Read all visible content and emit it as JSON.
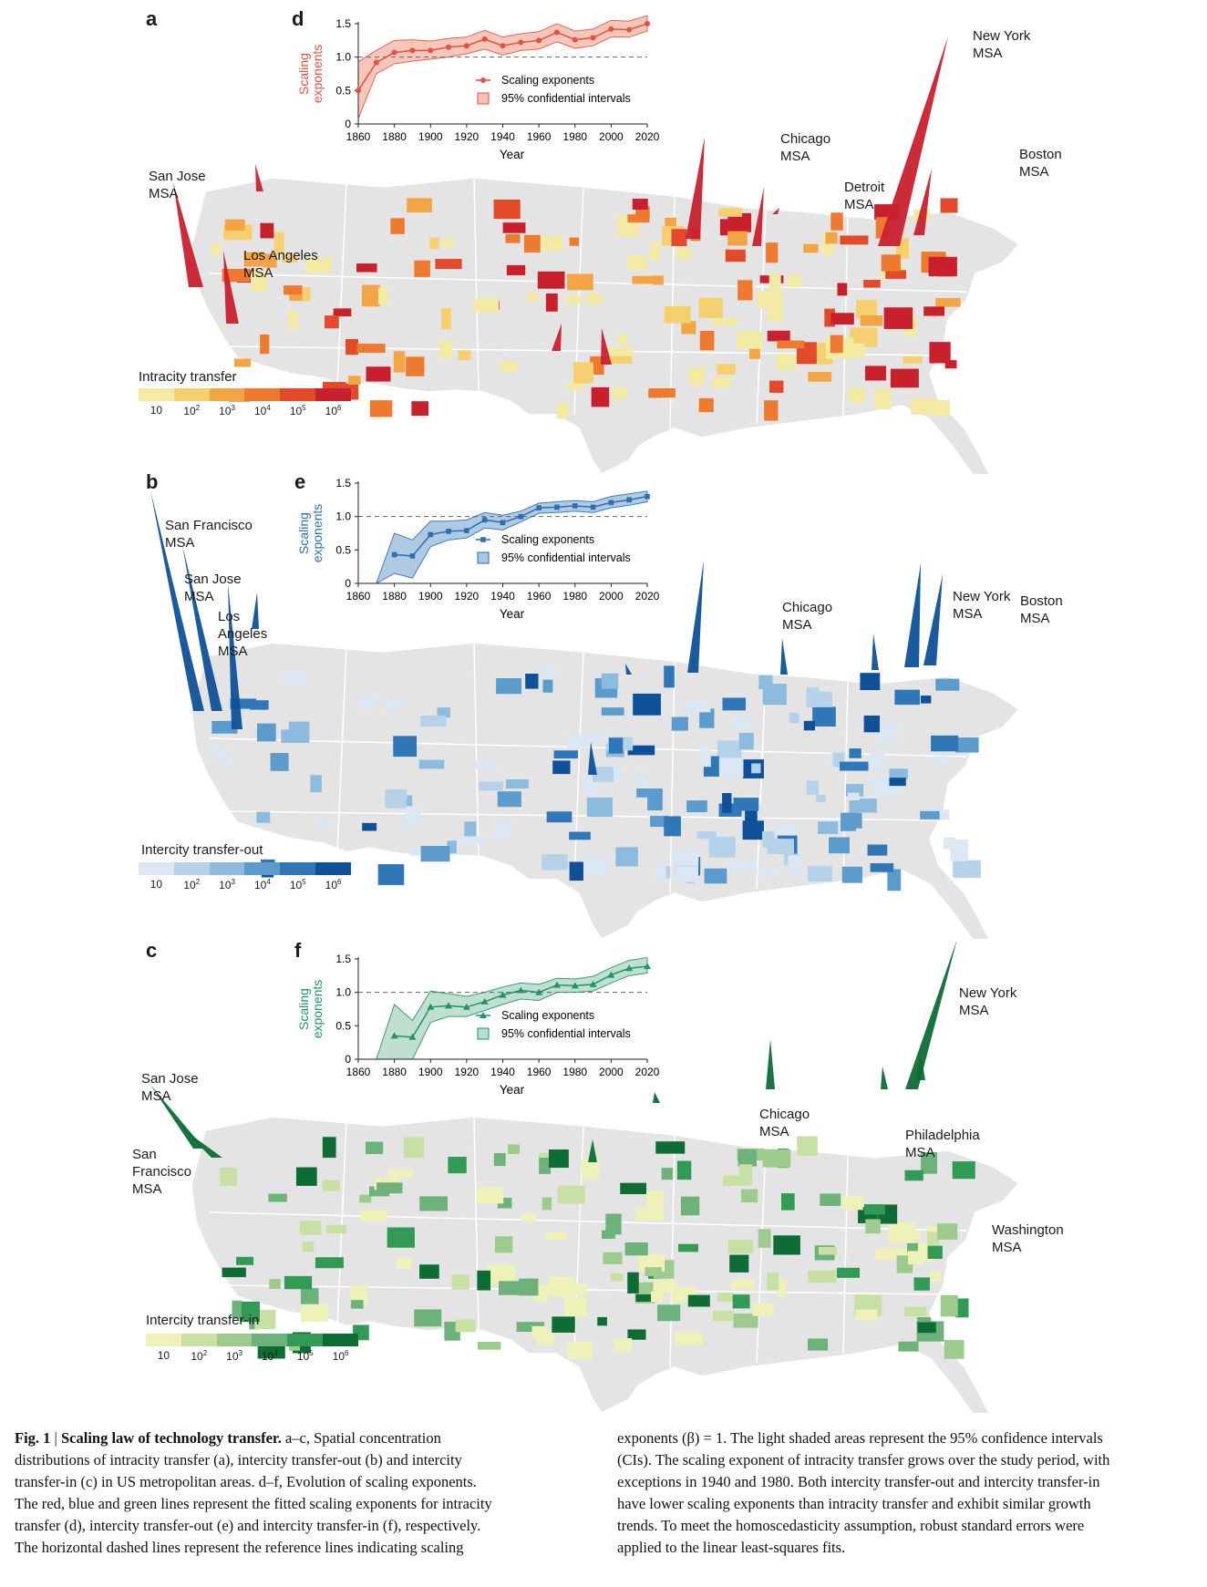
{
  "panels": {
    "a": {
      "letter": "a",
      "legend_title": "Intracity transfer",
      "colors": [
        "#f3eba4",
        "#f6cf6e",
        "#f3a545",
        "#ee7a30",
        "#e24a2a",
        "#c9202e"
      ],
      "cities": [
        "San Jose\nMSA",
        "Los Angeles\nMSA",
        "Chicago\nMSA",
        "Detroit\nMSA",
        "New York\nMSA",
        "Boston\nMSA"
      ]
    },
    "b": {
      "letter": "b",
      "legend_title": "Intercity transfer-out",
      "colors": [
        "#dbe7f3",
        "#b6d2e8",
        "#8cbbdd",
        "#5b9ccc",
        "#2f77b7",
        "#0e5198"
      ],
      "cities": [
        "San Francisco\nMSA",
        "San Jose\nMSA",
        "Los\nAngeles\nMSA",
        "Chicago\nMSA",
        "New York\nMSA",
        "Boston\nMSA"
      ]
    },
    "c": {
      "letter": "c",
      "legend_title": "Intercity transfer-in",
      "colors": [
        "#eef2b8",
        "#c9e0a5",
        "#9dcb8e",
        "#6cb27a",
        "#319a55",
        "#0d6d35"
      ],
      "cities": [
        "San Jose\nMSA",
        "San\nFrancisco\nMSA",
        "Chicago\nMSA",
        "Philadelphia\nMSA",
        "New York\nMSA",
        "Washington\nMSA"
      ]
    }
  },
  "legend_ticks": [
    "10",
    "10",
    "10",
    "10",
    "10",
    "10"
  ],
  "legend_exps": [
    "",
    "2",
    "3",
    "4",
    "5",
    "6"
  ],
  "chart_data": [
    {
      "type": "line",
      "panel": "d",
      "color": "#e5503f",
      "fill": "#f4c2b4",
      "x": [
        1860,
        1870,
        1880,
        1890,
        1900,
        1910,
        1920,
        1930,
        1940,
        1950,
        1960,
        1970,
        1980,
        1990,
        2000,
        2010,
        2020
      ],
      "series": [
        {
          "name": "Scaling exponents",
          "marker": "circle",
          "values": [
            0.5,
            0.92,
            1.07,
            1.1,
            1.1,
            1.15,
            1.17,
            1.27,
            1.17,
            1.22,
            1.25,
            1.37,
            1.26,
            1.29,
            1.42,
            1.41,
            1.5
          ]
        },
        {
          "name": "95% confidential intervals",
          "lower": [
            0.08,
            0.75,
            0.9,
            0.94,
            0.97,
            1.0,
            1.05,
            1.12,
            1.03,
            1.1,
            1.12,
            1.23,
            1.13,
            1.17,
            1.3,
            1.3,
            1.39
          ],
          "upper": [
            0.93,
            1.1,
            1.25,
            1.26,
            1.24,
            1.28,
            1.3,
            1.4,
            1.3,
            1.35,
            1.38,
            1.5,
            1.39,
            1.42,
            1.55,
            1.54,
            1.62
          ]
        }
      ],
      "xlabel": "Year",
      "ylabel": "Scaling\nexponents",
      "ylim": [
        0,
        1.5
      ],
      "xlim": [
        1860,
        2020
      ],
      "xticks": [
        "1860",
        "1880",
        "1900",
        "1920",
        "1940",
        "1960",
        "1980",
        "2000",
        "2020"
      ],
      "yticks": [
        "0",
        "0.5",
        "1.0",
        "1.5"
      ],
      "reference_line": 1.0
    },
    {
      "type": "line",
      "panel": "e",
      "color": "#2a6fb0",
      "fill": "#a9c5e2",
      "x": [
        1880,
        1890,
        1900,
        1910,
        1920,
        1930,
        1940,
        1950,
        1960,
        1970,
        1980,
        1990,
        2000,
        2010,
        2020
      ],
      "series": [
        {
          "name": "Scaling exponents",
          "marker": "square",
          "values": [
            0.43,
            0.41,
            0.73,
            0.78,
            0.79,
            0.95,
            0.91,
            1.0,
            1.13,
            1.14,
            1.16,
            1.14,
            1.21,
            1.25,
            1.3
          ]
        },
        {
          "name": "95% confidential intervals",
          "x_start": 1870,
          "lower": [
            0.0,
            0.15,
            0.08,
            0.55,
            0.65,
            0.68,
            0.83,
            0.8,
            0.92,
            1.05,
            1.06,
            1.08,
            1.06,
            1.13,
            1.17,
            1.22
          ],
          "upper": [
            0.0,
            0.75,
            0.65,
            0.93,
            0.93,
            0.95,
            1.06,
            1.02,
            1.08,
            1.2,
            1.22,
            1.24,
            1.22,
            1.3,
            1.34,
            1.38
          ]
        }
      ],
      "xlabel": "Year",
      "ylabel": "Scaling\nexponents",
      "ylim": [
        0,
        1.5
      ],
      "xlim": [
        1860,
        2020
      ],
      "xticks": [
        "1860",
        "1880",
        "1900",
        "1920",
        "1940",
        "1960",
        "1980",
        "2000",
        "2020"
      ],
      "yticks": [
        "0",
        "0.5",
        "1.0",
        "1.5"
      ],
      "reference_line": 1.0
    },
    {
      "type": "line",
      "panel": "f",
      "color": "#21946a",
      "fill": "#b9dccb",
      "x": [
        1880,
        1890,
        1900,
        1910,
        1920,
        1930,
        1940,
        1950,
        1960,
        1970,
        1980,
        1990,
        2000,
        2010,
        2020
      ],
      "series": [
        {
          "name": "Scaling exponents",
          "marker": "triangle",
          "values": [
            0.35,
            0.33,
            0.78,
            0.8,
            0.78,
            0.86,
            0.96,
            1.03,
            1.0,
            1.11,
            1.1,
            1.12,
            1.26,
            1.36,
            1.39
          ]
        },
        {
          "name": "95% confidential intervals",
          "x_start": 1870,
          "lower": [
            0.0,
            0.0,
            0.0,
            0.55,
            0.64,
            0.64,
            0.73,
            0.82,
            0.9,
            0.88,
            1.0,
            1.0,
            1.02,
            1.14,
            1.25,
            1.29
          ],
          "upper": [
            0.0,
            0.82,
            0.58,
            1.02,
            0.98,
            0.94,
            1.0,
            1.08,
            1.14,
            1.12,
            1.21,
            1.2,
            1.24,
            1.37,
            1.48,
            1.52
          ]
        }
      ],
      "xlabel": "Year",
      "ylabel": "Scaling\nexponents",
      "ylim": [
        0,
        1.5
      ],
      "xlim": [
        1860,
        2020
      ],
      "xticks": [
        "1860",
        "1880",
        "1900",
        "1920",
        "1940",
        "1960",
        "1980",
        "2000",
        "2020"
      ],
      "yticks": [
        "0",
        "0.5",
        "1.0",
        "1.5"
      ],
      "reference_line": 1.0
    }
  ],
  "caption": {
    "fig": "Fig. 1",
    "sep": " | ",
    "title": "Scaling law of technology transfer.",
    "col1": [
      " a–c, Spatial concentration",
      "distributions of intracity transfer (a), intercity transfer-out (b) and intercity",
      "transfer-in (c) in US metropolitan areas. d–f, Evolution of scaling exponents.",
      "The red, blue and green lines represent the fitted scaling exponents for intracity",
      "transfer (d), intercity transfer-out (e) and intercity transfer-in (f), respectively.",
      "The horizontal dashed lines represent the reference lines indicating scaling"
    ],
    "col2": [
      "exponents (β) = 1. The light shaded areas represent the 95% confidence intervals",
      "(CIs). The scaling exponent of intracity transfer grows over the study period, with",
      "exceptions in 1940 and 1980. Both intercity transfer-out and intercity transfer-in",
      "have lower scaling exponents than intracity transfer and exhibit similar growth",
      "trends. To meet the homoscedasticity assumption, robust standard errors were",
      "applied to the linear least-squares fits."
    ]
  }
}
